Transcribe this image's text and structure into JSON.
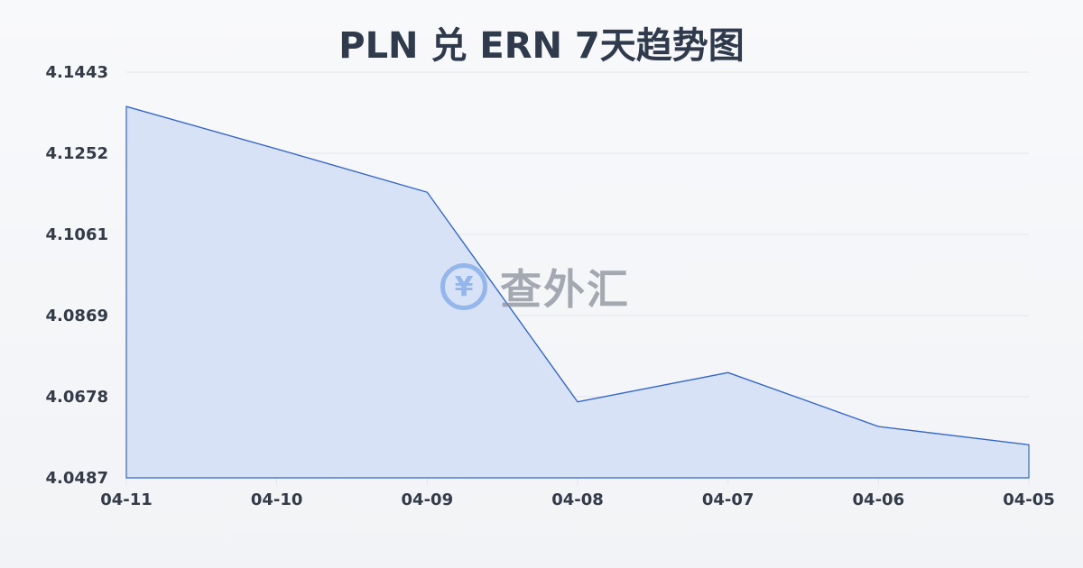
{
  "chart_data": {
    "type": "area",
    "title": "PLN 兑 ERN 7天趋势图",
    "categories": [
      "04-11",
      "04-10",
      "04-09",
      "04-08",
      "04-07",
      "04-06",
      "04-05"
    ],
    "values": [
      4.1362,
      4.1262,
      4.116,
      4.0666,
      4.0735,
      4.0608,
      4.0565
    ],
    "yticks": [
      "4.1443",
      "4.1252",
      "4.1061",
      "4.0869",
      "4.0678",
      "4.0487"
    ],
    "ylim": [
      4.0487,
      4.1443
    ],
    "grid": true,
    "line_color": "#3366cc",
    "fill_color": "#d6e0f5"
  },
  "watermark": {
    "icon": "yen-exchange-icon",
    "symbol": "¥",
    "text": "查外汇"
  }
}
